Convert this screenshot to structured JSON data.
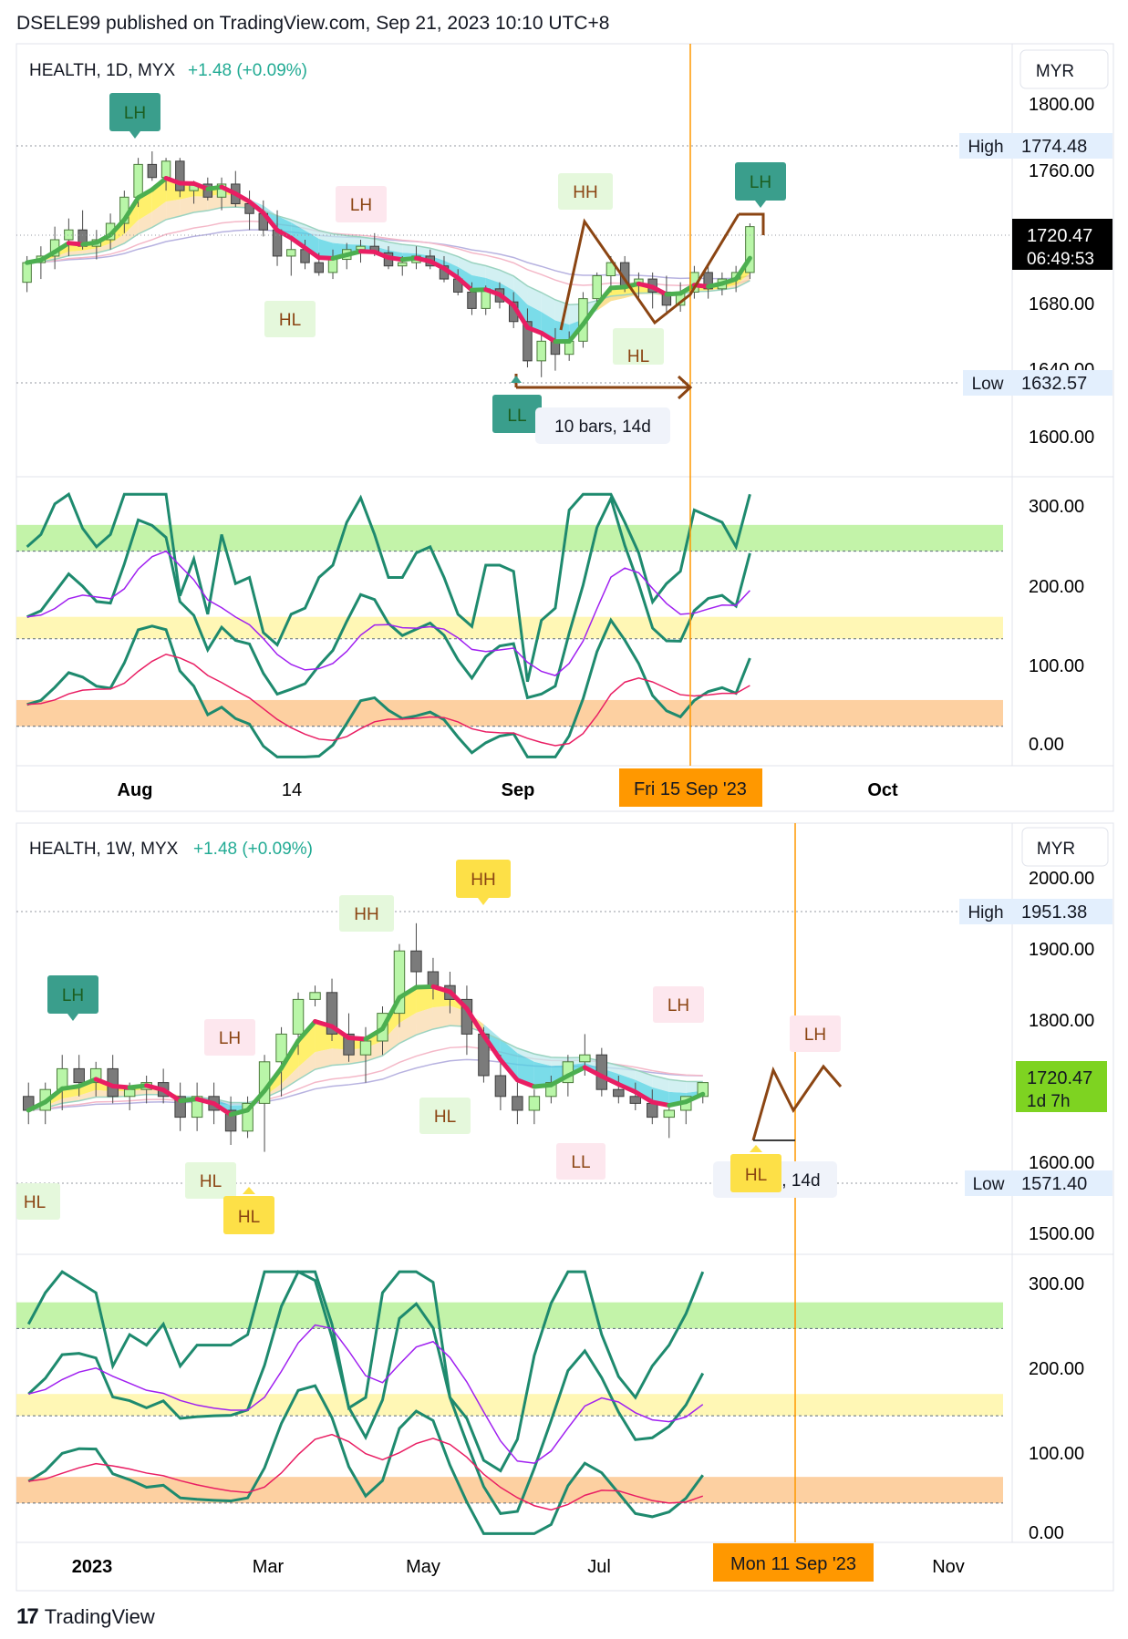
{
  "header": {
    "publisher_line": "DSELE99 published on TradingView.com, Sep 21, 2023 10:10 UTC+8"
  },
  "footer": {
    "brand": "TradingView"
  },
  "colors": {
    "up_candle": "#b9f6a8",
    "down_candle": "#7b7b7b",
    "wick": "#4a4a4a",
    "fast_ma": "#4caf50",
    "slow_ma": "#e91e63",
    "ribbon_up": "#ffeb3b",
    "ribbon_down": "#4dd0e1",
    "band_top": "#b9f19a",
    "band_mid": "#fff6a8",
    "band_low": "#fdc891",
    "osc_line": "#1e8a6e",
    "osc_signal_purple": "#a020f0",
    "osc_signal_red": "#e91e63",
    "marker_teal": "#3a9e8c",
    "marker_yellow": "#fde047",
    "arrow_brown": "#8b4513",
    "date_badge": "#ff9800",
    "price_badge_dark": "#000000",
    "price_badge_green": "#7ed321"
  },
  "charts": [
    {
      "symbol_line": "HEALTH, 1D, MYX",
      "change": "+1.48 (+0.09%)",
      "currency": "MYR",
      "high_label": "High",
      "high_value": "1774.48",
      "low_label": "Low",
      "low_value": "1632.57",
      "last_price": "1720.47",
      "countdown": "06:49:53",
      "price_ticks": [
        "1800.00",
        "1760.00",
        "1680.00",
        "1640.00",
        "1600.00"
      ],
      "osc_ticks": [
        "300.00",
        "200.00",
        "100.00",
        "0.00"
      ],
      "x_labels": [
        "Aug",
        "14",
        "Sep",
        "Oct"
      ],
      "crosshair_date": "Fri 15 Sep '23",
      "range_label": "10 bars, 14d",
      "markers": [
        "LH",
        "LH",
        "HL",
        "HH",
        "HL",
        "LL",
        "LH"
      ]
    },
    {
      "symbol_line": "HEALTH, 1W, MYX",
      "change": "+1.48 (+0.09%)",
      "currency": "MYR",
      "high_label": "High",
      "high_value": "1951.38",
      "low_label": "Low",
      "low_value": "1571.40",
      "last_price": "1720.47",
      "countdown": "1d 7h",
      "price_ticks": [
        "2000.00",
        "1900.00",
        "1800.00",
        "1600.00",
        "1500.00"
      ],
      "osc_ticks": [
        "300.00",
        "200.00",
        "100.00",
        "0.00"
      ],
      "x_labels": [
        "2023",
        "Mar",
        "May",
        "Jul",
        "Nov"
      ],
      "crosshair_date": "Mon 11 Sep '23",
      "range_label": "2 bars, 14d",
      "markers": [
        "LH",
        "HL",
        "LH",
        "HL",
        "HL",
        "HH",
        "HL",
        "HH",
        "LL",
        "LH",
        "HL",
        "LH"
      ]
    }
  ],
  "chart_data": [
    {
      "type": "candlestick",
      "title": "HEALTH, 1D, MYX",
      "ylim": [
        1590,
        1815
      ],
      "candles": [
        [
          1696,
          1712,
          1690,
          1708
        ],
        [
          1708,
          1718,
          1698,
          1712
        ],
        [
          1712,
          1730,
          1704,
          1722
        ],
        [
          1722,
          1735,
          1712,
          1728
        ],
        [
          1728,
          1740,
          1716,
          1718
        ],
        [
          1718,
          1728,
          1710,
          1722
        ],
        [
          1722,
          1738,
          1716,
          1732
        ],
        [
          1732,
          1752,
          1726,
          1748
        ],
        [
          1748,
          1772,
          1742,
          1768
        ],
        [
          1768,
          1776,
          1758,
          1760
        ],
        [
          1760,
          1772,
          1752,
          1770
        ],
        [
          1770,
          1772,
          1748,
          1752
        ],
        [
          1752,
          1758,
          1744,
          1756
        ],
        [
          1756,
          1760,
          1746,
          1748
        ],
        [
          1748,
          1760,
          1740,
          1756
        ],
        [
          1756,
          1764,
          1742,
          1744
        ],
        [
          1744,
          1752,
          1728,
          1738
        ],
        [
          1738,
          1746,
          1724,
          1728
        ],
        [
          1728,
          1740,
          1706,
          1712
        ],
        [
          1712,
          1722,
          1700,
          1716
        ],
        [
          1716,
          1722,
          1704,
          1708
        ],
        [
          1708,
          1714,
          1700,
          1702
        ],
        [
          1702,
          1716,
          1698,
          1710
        ],
        [
          1710,
          1720,
          1704,
          1716
        ],
        [
          1716,
          1722,
          1708,
          1718
        ],
        [
          1718,
          1726,
          1712,
          1714
        ],
        [
          1714,
          1718,
          1704,
          1706
        ],
        [
          1706,
          1712,
          1700,
          1708
        ],
        [
          1708,
          1718,
          1704,
          1712
        ],
        [
          1712,
          1716,
          1704,
          1706
        ],
        [
          1706,
          1712,
          1696,
          1698
        ],
        [
          1698,
          1704,
          1688,
          1690
        ],
        [
          1690,
          1696,
          1676,
          1680
        ],
        [
          1680,
          1694,
          1676,
          1692
        ],
        [
          1692,
          1696,
          1680,
          1684
        ],
        [
          1684,
          1690,
          1668,
          1672
        ],
        [
          1672,
          1680,
          1644,
          1648
        ],
        [
          1648,
          1664,
          1638,
          1660
        ],
        [
          1660,
          1668,
          1642,
          1652
        ],
        [
          1652,
          1666,
          1648,
          1660
        ],
        [
          1660,
          1690,
          1656,
          1686
        ],
        [
          1686,
          1702,
          1680,
          1700
        ],
        [
          1700,
          1712,
          1690,
          1708
        ],
        [
          1708,
          1712,
          1690,
          1694
        ],
        [
          1694,
          1702,
          1686,
          1698
        ],
        [
          1698,
          1702,
          1680,
          1690
        ],
        [
          1690,
          1700,
          1676,
          1682
        ],
        [
          1682,
          1696,
          1678,
          1690
        ],
        [
          1690,
          1706,
          1686,
          1702
        ],
        [
          1702,
          1706,
          1686,
          1692
        ],
        [
          1692,
          1702,
          1688,
          1698
        ],
        [
          1698,
          1706,
          1690,
          1702
        ],
        [
          1702,
          1732,
          1698,
          1730
        ]
      ],
      "oscillator_levels": {
        "top_band": [
          235,
          265
        ],
        "mid_band": [
          135,
          160
        ],
        "low_band": [
          35,
          65
        ]
      },
      "ylim_osc": [
        -10,
        320
      ]
    },
    {
      "type": "candlestick",
      "title": "HEALTH, 1W, MYX",
      "ylim": [
        1480,
        2030
      ],
      "candles": [
        [
          1700,
          1720,
          1660,
          1680
        ],
        [
          1680,
          1720,
          1660,
          1710
        ],
        [
          1710,
          1760,
          1680,
          1740
        ],
        [
          1740,
          1760,
          1700,
          1720
        ],
        [
          1720,
          1750,
          1700,
          1740
        ],
        [
          1740,
          1760,
          1690,
          1700
        ],
        [
          1700,
          1720,
          1680,
          1710
        ],
        [
          1710,
          1730,
          1690,
          1720
        ],
        [
          1720,
          1740,
          1690,
          1700
        ],
        [
          1700,
          1720,
          1650,
          1670
        ],
        [
          1670,
          1720,
          1650,
          1700
        ],
        [
          1700,
          1720,
          1660,
          1680
        ],
        [
          1680,
          1700,
          1630,
          1650
        ],
        [
          1650,
          1700,
          1640,
          1690
        ],
        [
          1690,
          1760,
          1620,
          1750
        ],
        [
          1750,
          1800,
          1700,
          1790
        ],
        [
          1790,
          1850,
          1760,
          1840
        ],
        [
          1840,
          1860,
          1830,
          1850
        ],
        [
          1850,
          1870,
          1780,
          1790
        ],
        [
          1790,
          1820,
          1750,
          1760
        ],
        [
          1760,
          1800,
          1720,
          1780
        ],
        [
          1780,
          1830,
          1760,
          1820
        ],
        [
          1820,
          1920,
          1800,
          1910
        ],
        [
          1910,
          1950,
          1860,
          1880
        ],
        [
          1880,
          1900,
          1840,
          1860
        ],
        [
          1860,
          1880,
          1820,
          1840
        ],
        [
          1840,
          1860,
          1760,
          1790
        ],
        [
          1790,
          1800,
          1720,
          1730
        ],
        [
          1730,
          1760,
          1680,
          1700
        ],
        [
          1700,
          1720,
          1660,
          1680
        ],
        [
          1680,
          1710,
          1660,
          1700
        ],
        [
          1700,
          1730,
          1690,
          1720
        ],
        [
          1720,
          1760,
          1700,
          1750
        ],
        [
          1750,
          1790,
          1730,
          1760
        ],
        [
          1760,
          1770,
          1700,
          1710
        ],
        [
          1710,
          1730,
          1690,
          1700
        ],
        [
          1700,
          1720,
          1680,
          1690
        ],
        [
          1690,
          1710,
          1660,
          1670
        ],
        [
          1670,
          1690,
          1640,
          1680
        ],
        [
          1680,
          1700,
          1660,
          1700
        ],
        [
          1700,
          1720,
          1690,
          1720
        ]
      ],
      "oscillator_levels": {
        "top_band": [
          235,
          265
        ],
        "mid_band": [
          135,
          160
        ],
        "low_band": [
          35,
          65
        ]
      },
      "ylim_osc": [
        -10,
        320
      ]
    }
  ]
}
